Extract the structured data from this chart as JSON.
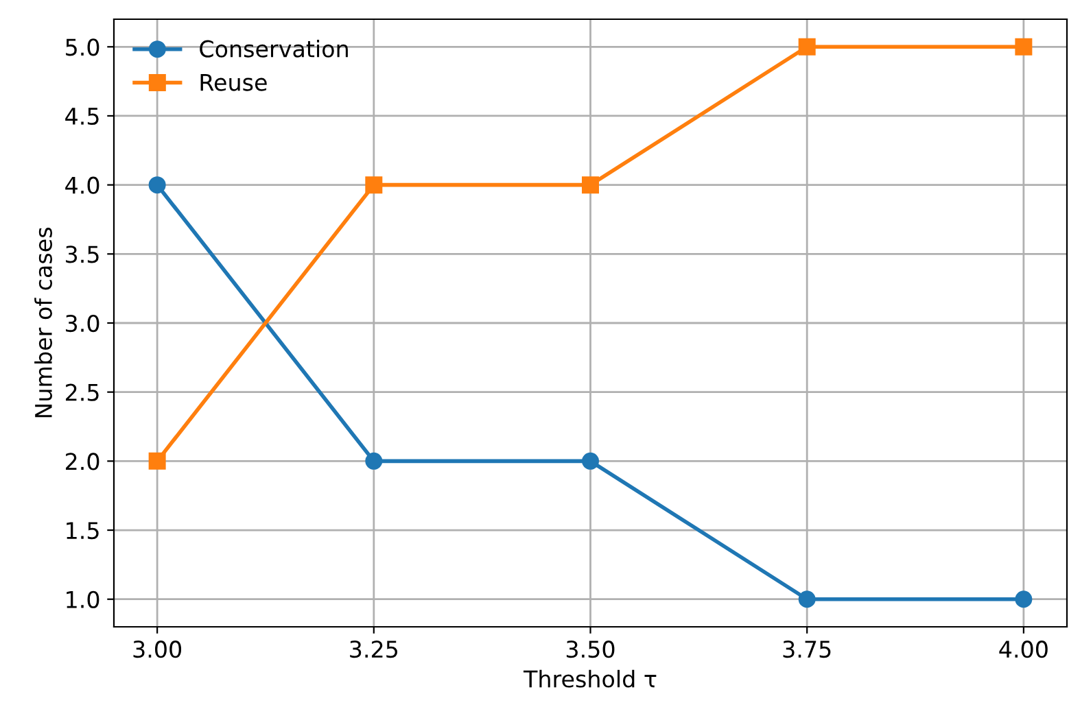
{
  "chart_data": {
    "type": "line",
    "xlabel": "Threshold τ",
    "ylabel": "Number of cases",
    "x": [
      3.0,
      3.25,
      3.5,
      3.75,
      4.0
    ],
    "series": [
      {
        "name": "Conservation",
        "color": "#1f77b4",
        "marker": "circle",
        "values": [
          4,
          2,
          2,
          1,
          1
        ]
      },
      {
        "name": "Reuse",
        "color": "#ff7f0e",
        "marker": "square",
        "values": [
          2,
          4,
          4,
          5,
          5
        ]
      }
    ],
    "xlim": [
      2.95,
      4.05
    ],
    "ylim": [
      0.8,
      5.2
    ],
    "xticks": [
      {
        "value": 3.0,
        "label": "3.00"
      },
      {
        "value": 3.25,
        "label": "3.25"
      },
      {
        "value": 3.5,
        "label": "3.50"
      },
      {
        "value": 3.75,
        "label": "3.75"
      },
      {
        "value": 4.0,
        "label": "4.00"
      }
    ],
    "yticks": [
      {
        "value": 1.0,
        "label": "1.0"
      },
      {
        "value": 1.5,
        "label": "1.5"
      },
      {
        "value": 2.0,
        "label": "2.0"
      },
      {
        "value": 2.5,
        "label": "2.5"
      },
      {
        "value": 3.0,
        "label": "3.0"
      },
      {
        "value": 3.5,
        "label": "3.5"
      },
      {
        "value": 4.0,
        "label": "4.0"
      },
      {
        "value": 4.5,
        "label": "4.5"
      },
      {
        "value": 5.0,
        "label": "5.0"
      }
    ],
    "grid": true,
    "legend": "top left",
    "line_style": "solid"
  }
}
